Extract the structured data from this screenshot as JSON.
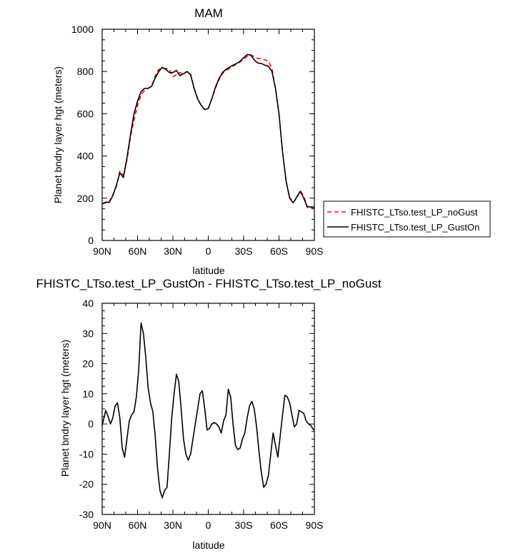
{
  "chart_data": [
    {
      "type": "line",
      "title": "MAM",
      "xlabel": "latitude",
      "ylabel": "Planet bndry layer hgt (meters)",
      "xlim": [
        90,
        -90
      ],
      "ylim": [
        0,
        1000
      ],
      "x_ticks": [
        90,
        60,
        30,
        0,
        -30,
        -60,
        -90
      ],
      "x_tick_labels": [
        "90N",
        "60N",
        "30N",
        "0",
        "30S",
        "60S",
        "90S"
      ],
      "y_ticks": [
        0,
        200,
        400,
        600,
        800,
        1000
      ],
      "y_tick_labels": [
        "0",
        "200",
        "400",
        "600",
        "800",
        "1000"
      ],
      "grid": false,
      "legend_position": "right",
      "series": [
        {
          "name": "FHISTC_LTso.test_LP_noGust",
          "color": "#ff0000",
          "dash": "dashed",
          "x": [
            90,
            87,
            84,
            81,
            78,
            75,
            72,
            69,
            66,
            63,
            60,
            57,
            54,
            51,
            48,
            45,
            42,
            39,
            36,
            33,
            30,
            27,
            24,
            21,
            18,
            15,
            12,
            9,
            6,
            3,
            0,
            -3,
            -6,
            -9,
            -12,
            -15,
            -18,
            -21,
            -24,
            -27,
            -30,
            -33,
            -36,
            -39,
            -42,
            -45,
            -48,
            -51,
            -54,
            -57,
            -60,
            -63,
            -66,
            -69,
            -72,
            -75,
            -78,
            -81,
            -84,
            -87,
            -90
          ],
          "y": [
            173,
            178,
            185,
            215,
            255,
            328,
            310,
            380,
            490,
            570,
            640,
            690,
            710,
            722,
            730,
            780,
            810,
            815,
            815,
            810,
            775,
            785,
            795,
            785,
            800,
            790,
            720,
            668,
            640,
            620,
            625,
            670,
            720,
            760,
            790,
            805,
            815,
            825,
            835,
            845,
            858,
            872,
            880,
            870,
            862,
            860,
            855,
            850,
            815,
            720,
            600,
            420,
            280,
            205,
            180,
            200,
            235,
            210,
            155,
            155,
            155
          ]
        },
        {
          "name": "FHISTC_LTso.test_LP_GustOn",
          "color": "#000000",
          "dash": "solid",
          "x": [
            90,
            87,
            84,
            81,
            78,
            75,
            72,
            69,
            66,
            63,
            60,
            57,
            54,
            51,
            48,
            45,
            42,
            39,
            36,
            33,
            30,
            27,
            24,
            21,
            18,
            15,
            12,
            9,
            6,
            3,
            0,
            -3,
            -6,
            -9,
            -12,
            -15,
            -18,
            -21,
            -24,
            -27,
            -30,
            -33,
            -36,
            -39,
            -42,
            -45,
            -48,
            -51,
            -54,
            -57,
            -60,
            -63,
            -66,
            -69,
            -72,
            -75,
            -78,
            -81,
            -84,
            -87,
            -90
          ],
          "y": [
            172,
            182,
            180,
            212,
            260,
            320,
            298,
            390,
            500,
            600,
            660,
            705,
            720,
            720,
            730,
            770,
            800,
            820,
            810,
            795,
            795,
            805,
            780,
            790,
            800,
            785,
            720,
            670,
            640,
            620,
            625,
            670,
            725,
            765,
            795,
            810,
            820,
            830,
            838,
            848,
            865,
            880,
            878,
            855,
            840,
            838,
            830,
            825,
            800,
            720,
            600,
            420,
            282,
            200,
            178,
            205,
            233,
            200,
            160,
            158,
            158
          ]
        }
      ]
    },
    {
      "type": "line",
      "title": "FHISTC_LTso.test_LP_GustOn - FHISTC_LTso.test_LP_noGust",
      "xlabel": "latitude",
      "ylabel": "Planet bndry layer hgt (meters)",
      "xlim": [
        90,
        -90
      ],
      "ylim": [
        -30,
        40
      ],
      "x_ticks": [
        90,
        60,
        30,
        0,
        -30,
        -60,
        -90
      ],
      "x_tick_labels": [
        "90N",
        "60N",
        "30N",
        "0",
        "30S",
        "60S",
        "90S"
      ],
      "y_ticks": [
        -30,
        -20,
        -10,
        0,
        10,
        20,
        30,
        40
      ],
      "y_tick_labels": [
        "-30",
        "-20",
        "-10",
        "0",
        "10",
        "20",
        "30",
        "40"
      ],
      "grid": false,
      "series": [
        {
          "color": "#000000",
          "dash": "solid",
          "x": [
            90,
            87,
            85,
            83,
            81,
            79,
            77,
            75,
            73,
            71,
            69,
            67,
            65,
            63,
            61,
            59,
            57,
            55,
            53,
            51,
            49,
            47,
            45,
            43,
            41,
            39,
            37,
            35,
            33,
            31,
            29,
            27,
            25,
            23,
            21,
            19,
            17,
            15,
            13,
            11,
            9,
            7,
            5,
            3,
            1,
            -1,
            -3,
            -5,
            -7,
            -9,
            -11,
            -13,
            -15,
            -17,
            -19,
            -21,
            -23,
            -25,
            -27,
            -29,
            -31,
            -33,
            -35,
            -37,
            -39,
            -41,
            -43,
            -45,
            -47,
            -49,
            -51,
            -53,
            -55,
            -57,
            -59,
            -61,
            -63,
            -65,
            -67,
            -69,
            -71,
            -73,
            -75,
            -77,
            -79,
            -81,
            -83,
            -85,
            -87,
            -89,
            -90
          ],
          "y": [
            -0.5,
            4.5,
            2.5,
            0,
            2,
            6,
            7,
            2,
            -8,
            -11,
            -5,
            1,
            3,
            4,
            9,
            18,
            33.5,
            30,
            22,
            12,
            7,
            4,
            -4,
            -15,
            -22,
            -24.5,
            -22,
            -21,
            -10,
            2,
            10,
            16.5,
            14,
            5,
            -5,
            -10,
            -12,
            -10,
            -5,
            0,
            5,
            10,
            11,
            5,
            -2,
            -1.5,
            0,
            0.5,
            0,
            -1,
            -3,
            1,
            3,
            11.5,
            9,
            0,
            -7,
            -8.5,
            -8,
            -5,
            -3,
            2,
            6,
            7.5,
            5,
            -1,
            -9,
            -16,
            -21,
            -20,
            -17,
            -10,
            -3,
            -7,
            -11,
            -4,
            3,
            9.5,
            9,
            7,
            3,
            -1,
            0,
            4.5,
            4,
            3.5,
            1,
            0,
            -0.5,
            -1.8,
            -2
          ]
        }
      ]
    }
  ]
}
